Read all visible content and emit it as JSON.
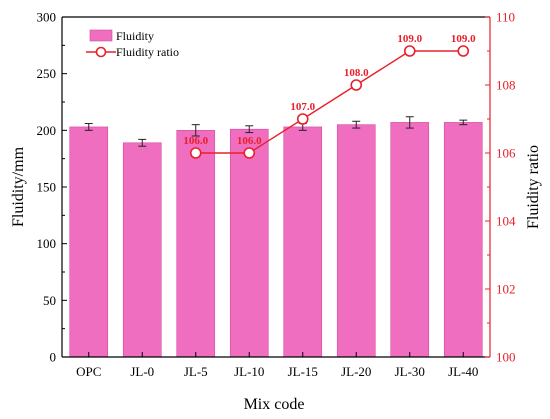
{
  "chart_data": {
    "type": "bar+line",
    "categories": [
      "OPC",
      "JL-0",
      "JL-5",
      "JL-10",
      "JL-15",
      "JL-20",
      "JL-30",
      "JL-40"
    ],
    "bar_series": {
      "name": "Fluidity",
      "values": [
        203,
        189,
        200,
        201,
        203,
        205,
        207,
        207
      ],
      "errors": [
        3,
        3,
        5,
        3,
        3,
        3,
        5,
        2
      ],
      "color": "#f06ec0",
      "edge_color": "#d14aa0"
    },
    "line_series": {
      "name": "Fluidity ratio",
      "categories": [
        "JL-5",
        "JL-10",
        "JL-15",
        "JL-20",
        "JL-30",
        "JL-40"
      ],
      "values": [
        106.0,
        106.0,
        107.0,
        108.0,
        109.0,
        109.0
      ],
      "labels": [
        "106.0",
        "106.0",
        "107.0",
        "108.0",
        "109.0",
        "109.0"
      ],
      "color": "#e8202a"
    },
    "xlabel": "Mix code",
    "ylabel_left": "Fluidity/mm",
    "ylabel_right": "Fluidity ratio",
    "ylim_left": [
      0,
      300
    ],
    "yticks_left": [
      "0",
      "50",
      "100",
      "150",
      "200",
      "250",
      "300"
    ],
    "ylim_right": [
      100,
      110
    ],
    "yticks_right": [
      "100",
      "102",
      "104",
      "106",
      "108",
      "110"
    ],
    "legend_position": "top-left",
    "grid": false
  }
}
